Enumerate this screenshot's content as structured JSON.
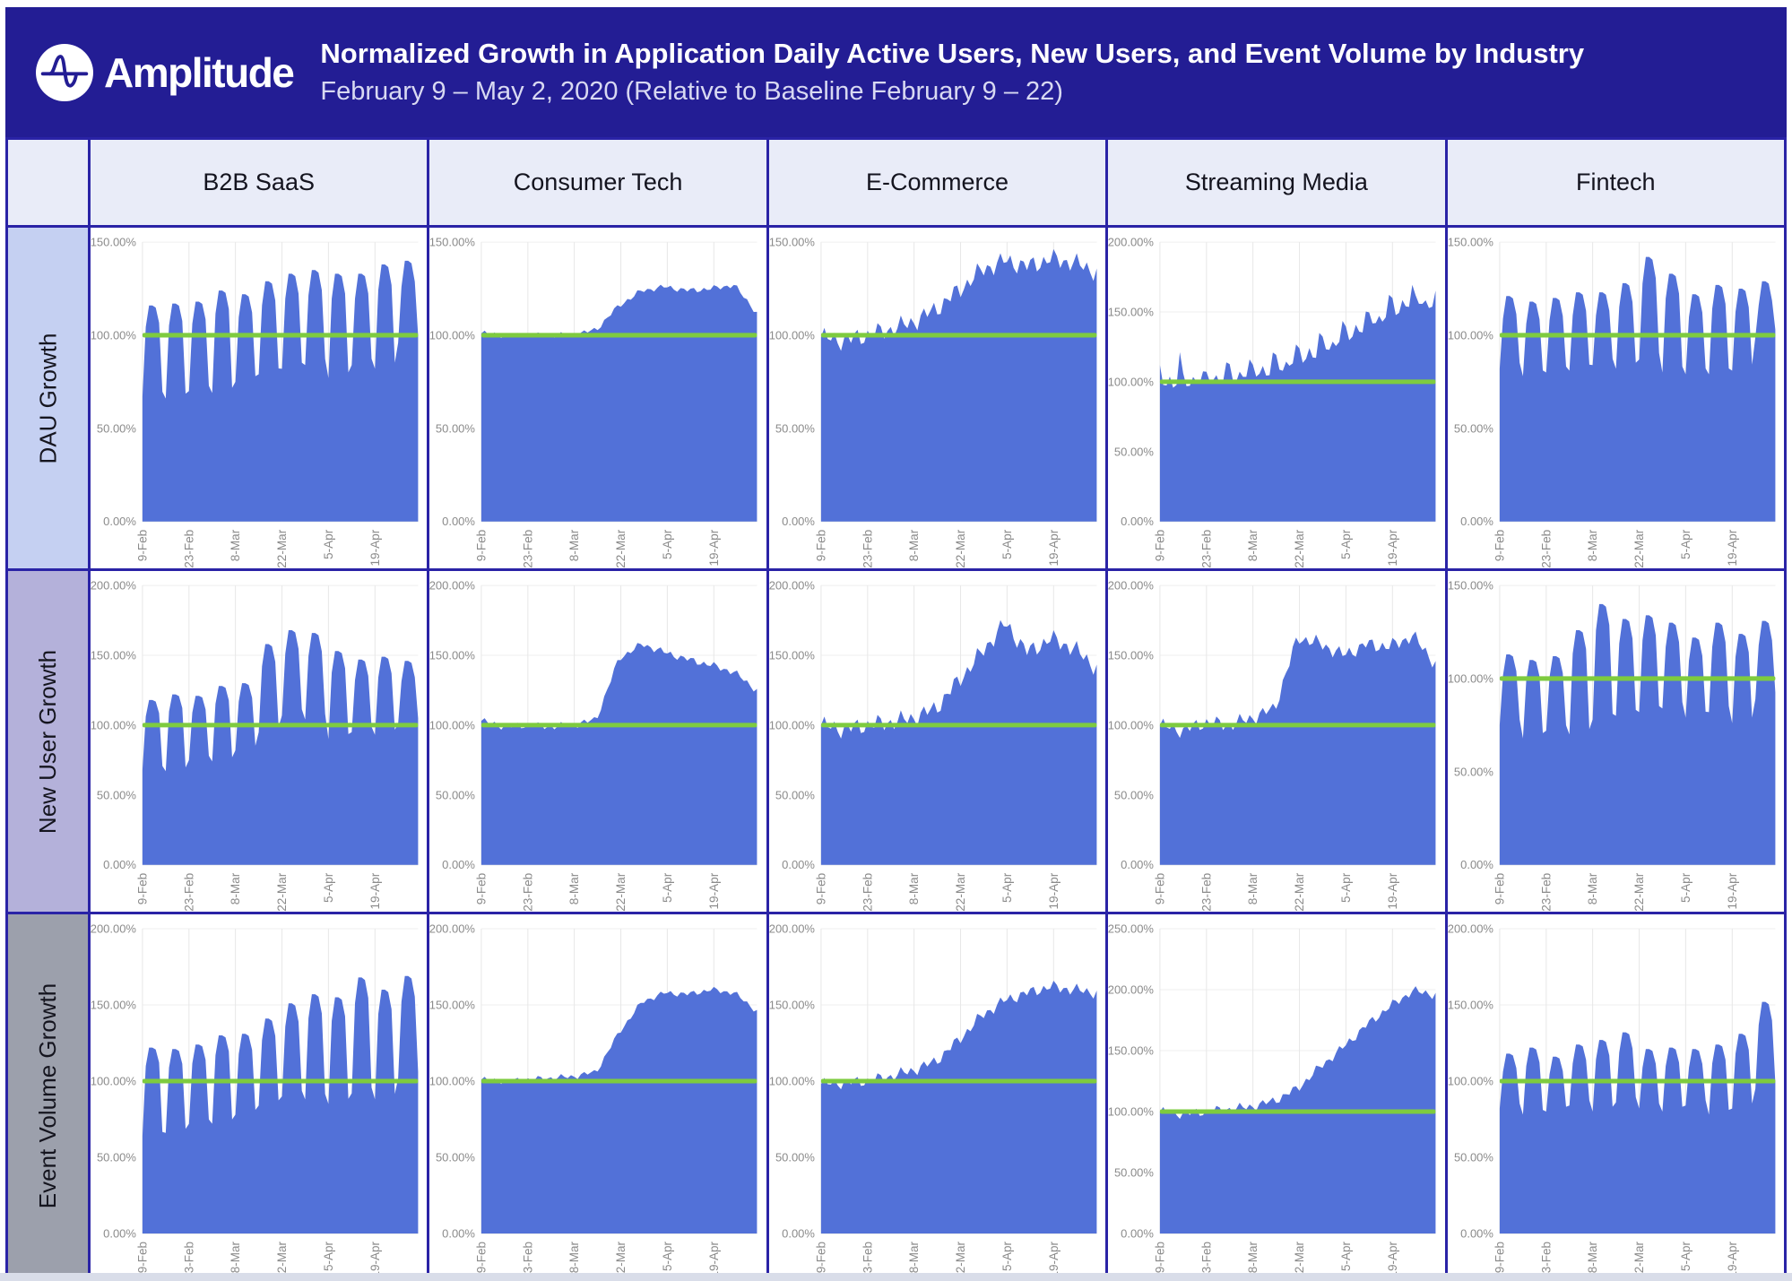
{
  "header": {
    "brand": "Amplitude",
    "title": "Normalized Growth in Application Daily Active Users, New Users, and Event Volume by Industry",
    "subtitle": "February 9 – May 2, 2020 (Relative to Baseline February 9 – 22)"
  },
  "columns": [
    "B2B SaaS",
    "Consumer Tech",
    "E-Commerce",
    "Streaming Media",
    "Fintech"
  ],
  "rows": [
    "DAU Growth",
    "New User Growth",
    "Event Volume Growth"
  ],
  "colors": {
    "banner_bg": "#231d94",
    "grid_border": "#2a23a6",
    "column_header_bg": "#e9ecf8",
    "row_label_bg_dau": "#c5d0f2",
    "row_label_bg_new_user": "#b4b1da",
    "row_label_bg_event_volume": "#9ca0ac",
    "area_fill": "#5271d8",
    "baseline_green": "#7ecb3f",
    "axis_text": "#8b8b8b",
    "gridline_vertical": "#e7e7e7",
    "gridline_horizontal": "#efefef",
    "bottom_strip": "#d9dde9"
  },
  "chart_data": {
    "type": "area",
    "days": 84,
    "start_date": "9-Feb-2020",
    "end_date": "2-May-2020",
    "baseline_value": 100,
    "y_tick_step": 50,
    "y_label_format": "0.00%",
    "x_tick_labels": [
      "9-Feb",
      "23-Feb",
      "8-Mar",
      "22-Mar",
      "5-Apr",
      "19-Apr"
    ],
    "x_tick_days": [
      0,
      14,
      28,
      42,
      56,
      70
    ],
    "grid": true,
    "legend": "none",
    "charts": [
      {
        "metric": "DAU Growth",
        "industry": "B2B SaaS",
        "ymax": 150,
        "pattern": "weekly",
        "weekly_peaks": [
          116,
          117,
          118,
          124,
          122,
          129,
          133,
          135,
          133,
          133,
          138,
          140
        ],
        "weekly_dips": [
          67,
          66,
          70,
          69,
          75,
          79,
          82,
          84,
          77,
          84,
          82,
          96
        ]
      },
      {
        "metric": "DAU Growth",
        "industry": "Consumer Tech",
        "ymax": 150,
        "pattern": "smooth",
        "weekly_trend": [
          101,
          100,
          100,
          100,
          100,
          103,
          116,
          124,
          126,
          124,
          125,
          127,
          112
        ],
        "wiggle": 1.2
      },
      {
        "metric": "DAU Growth",
        "industry": "E-Commerce",
        "ymax": 150,
        "pattern": "smooth",
        "weekly_trend": [
          99,
          97,
          100,
          103,
          107,
          114,
          124,
          135,
          140,
          137,
          141,
          139,
          134
        ],
        "wiggle": 4
      },
      {
        "metric": "DAU Growth",
        "industry": "Streaming Media",
        "ymax": 200,
        "pattern": "spiky",
        "weekly_trend": [
          98,
          100,
          101,
          103,
          105,
          109,
          115,
          122,
          131,
          140,
          149,
          157,
          156
        ],
        "weekly_spikes": [
          20,
          8,
          10,
          12,
          12,
          12,
          14,
          12,
          12,
          12,
          14,
          8
        ]
      },
      {
        "metric": "DAU Growth",
        "industry": "Fintech",
        "ymax": 150,
        "pattern": "weekly",
        "weekly_peaks": [
          121,
          118,
          120,
          123,
          123,
          128,
          142,
          133,
          122,
          127,
          125,
          129
        ],
        "weekly_dips": [
          82,
          78,
          80,
          81,
          84,
          82,
          87,
          80,
          79,
          79,
          81,
          99
        ]
      },
      {
        "metric": "New User Growth",
        "industry": "B2B SaaS",
        "ymax": 200,
        "pattern": "weekly",
        "weekly_peaks": [
          118,
          122,
          121,
          128,
          130,
          158,
          168,
          166,
          153,
          147,
          149,
          146
        ],
        "weekly_dips": [
          68,
          67,
          75,
          74,
          82,
          95,
          107,
          104,
          90,
          95,
          93,
          101
        ]
      },
      {
        "metric": "New User Growth",
        "industry": "Consumer Tech",
        "ymax": 200,
        "pattern": "smooth",
        "weekly_trend": [
          103,
          99,
          100,
          99,
          100,
          104,
          148,
          158,
          152,
          147,
          143,
          138,
          125
        ],
        "wiggle": 2
      },
      {
        "metric": "New User Growth",
        "industry": "E-Commerce",
        "ymax": 200,
        "pattern": "smooth",
        "weekly_trend": [
          100,
          97,
          100,
          102,
          105,
          112,
          132,
          152,
          173,
          152,
          162,
          155,
          141
        ],
        "wiggle": 5
      },
      {
        "metric": "New User Growth",
        "industry": "Streaming Media",
        "ymax": 200,
        "pattern": "smooth",
        "weekly_trend": [
          100,
          96,
          102,
          100,
          105,
          112,
          163,
          158,
          150,
          158,
          156,
          164,
          144
        ],
        "wiggle": 4
      },
      {
        "metric": "New User Growth",
        "industry": "Fintech",
        "ymax": 150,
        "pattern": "weekly",
        "weekly_peaks": [
          113,
          110,
          112,
          126,
          140,
          132,
          134,
          130,
          122,
          130,
          124,
          131
        ],
        "weekly_dips": [
          75,
          68,
          72,
          70,
          78,
          80,
          82,
          84,
          79,
          82,
          76,
          89
        ]
      },
      {
        "metric": "Event Volume Growth",
        "industry": "B2B SaaS",
        "ymax": 200,
        "pattern": "weekly",
        "weekly_peaks": [
          122,
          121,
          124,
          130,
          131,
          141,
          151,
          157,
          155,
          168,
          160,
          169
        ],
        "weekly_dips": [
          64,
          66,
          72,
          72,
          78,
          84,
          90,
          88,
          85,
          92,
          88,
          102
        ]
      },
      {
        "metric": "Event Volume Growth",
        "industry": "Consumer Tech",
        "ymax": 200,
        "pattern": "smooth",
        "weekly_trend": [
          101,
          100,
          101,
          102,
          103,
          106,
          132,
          152,
          158,
          157,
          160,
          158,
          146
        ],
        "wiggle": 1.5
      },
      {
        "metric": "Event Volume Growth",
        "industry": "E-Commerce",
        "ymax": 200,
        "pattern": "smooth",
        "weekly_trend": [
          98,
          99,
          100,
          103,
          107,
          113,
          127,
          143,
          153,
          158,
          162,
          160,
          158
        ],
        "wiggle": 3
      },
      {
        "metric": "Event Volume Growth",
        "industry": "Streaming Media",
        "ymax": 250,
        "pattern": "smooth",
        "weekly_trend": [
          100,
          98,
          100,
          102,
          104,
          109,
          119,
          137,
          153,
          171,
          186,
          199,
          196
        ],
        "wiggle": 3
      },
      {
        "metric": "Event Volume Growth",
        "industry": "Fintech",
        "ymax": 200,
        "pattern": "weekly",
        "weekly_peaks": [
          118,
          122,
          116,
          124,
          127,
          132,
          121,
          122,
          121,
          124,
          131,
          152
        ],
        "weekly_dips": [
          82,
          78,
          80,
          84,
          80,
          86,
          82,
          80,
          84,
          78,
          82,
          95
        ]
      }
    ]
  }
}
